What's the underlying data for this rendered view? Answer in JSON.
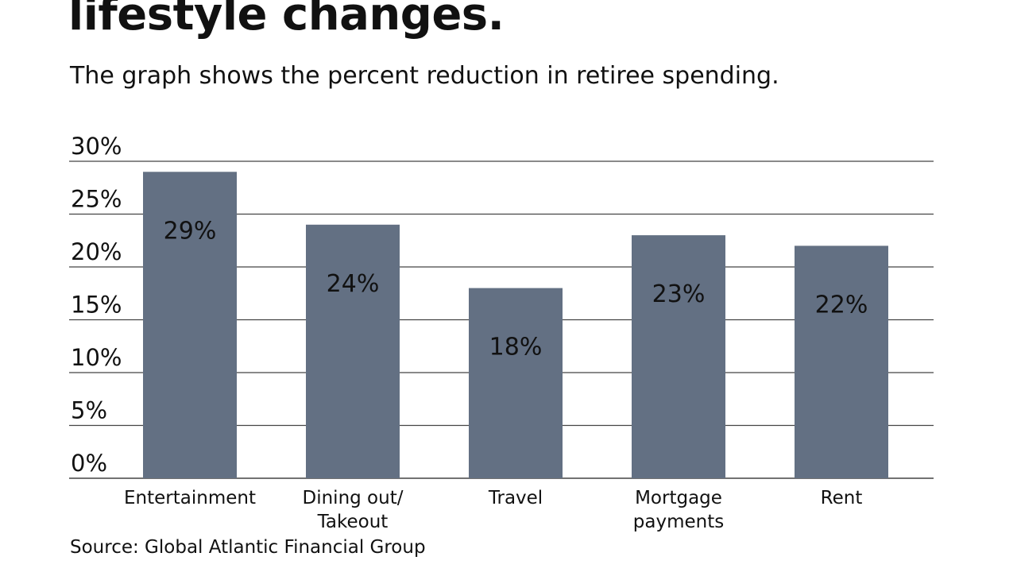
{
  "title": "lifestyle changes.",
  "subtitle": "The graph shows the percent reduction in retiree spending.",
  "source": "Source: Global Atlantic Financial Group",
  "colors": {
    "bar": "#637083",
    "grid": "#444444"
  },
  "chart_data": {
    "type": "bar",
    "title": "lifestyle changes.",
    "subtitle": "The graph shows the percent reduction in retiree spending.",
    "categories": [
      [
        "Entertainment"
      ],
      [
        "Dining out/",
        "Takeout"
      ],
      [
        "Travel"
      ],
      [
        "Mortgage",
        "payments"
      ],
      [
        "Rent"
      ]
    ],
    "values": [
      29,
      24,
      18,
      23,
      22
    ],
    "data_labels": [
      "29%",
      "24%",
      "18%",
      "23%",
      "22%"
    ],
    "yticks": [
      0,
      5,
      10,
      15,
      20,
      25,
      30
    ],
    "ytick_labels": [
      "0%",
      "5%",
      "10%",
      "15%",
      "20%",
      "25%",
      "30%"
    ],
    "ylim": [
      0,
      30
    ],
    "grid": true,
    "xlabel": "",
    "ylabel": ""
  }
}
